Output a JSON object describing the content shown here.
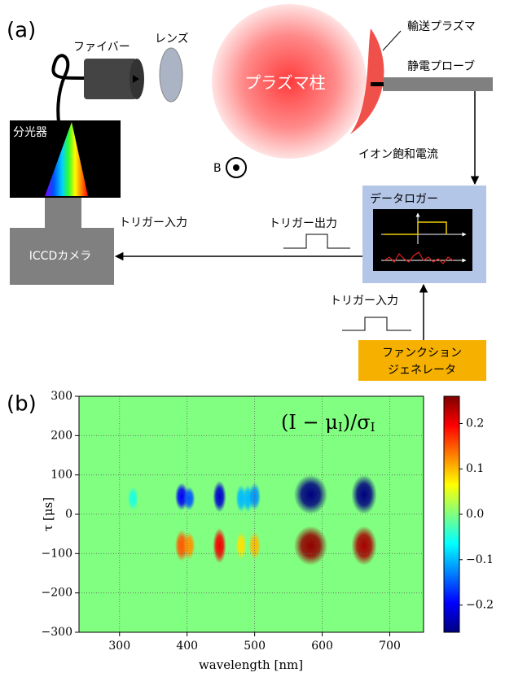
{
  "panel_a": {
    "label": "(a)",
    "fiber": "ファイバー",
    "lens": "レンズ",
    "spectrometer": "分光器",
    "camera": "ICCDカメラ",
    "plasma_column": "プラズマ柱",
    "transport_plasma": "輸送プラズマ",
    "probe": "静電プローブ",
    "b_field": "B",
    "ion_current": "イオン飽和電流",
    "logger": "データロガー",
    "trigger_in_camera": "トリガー入力",
    "trigger_out": "トリガー出力",
    "trigger_in_logger": "トリガー入力",
    "function_generator": [
      "ファンクション",
      "ジェネレータ"
    ]
  },
  "panel_b": {
    "label": "(b)",
    "chart_data": {
      "type": "heatmap",
      "annotation": [
        "(I − μ",
        "I",
        ")/σ",
        "I"
      ],
      "xlabel": "wavelength [nm]",
      "ylabel": "τ [μs]",
      "xlim": [
        240,
        750
      ],
      "xticks": [
        300,
        400,
        500,
        600,
        700
      ],
      "ylim": [
        -300,
        300
      ],
      "yticks": [
        {
          "value": -300,
          "label": "−300"
        },
        {
          "value": -200,
          "label": "−200"
        },
        {
          "value": -100,
          "label": "−100"
        },
        0,
        100,
        200,
        300
      ],
      "grid": true,
      "colormap": "jet",
      "clim": [
        -0.26,
        0.26
      ],
      "cticks": [
        {
          "value": -0.2,
          "label": "−0.2"
        },
        {
          "value": -0.1,
          "label": "−0.1"
        },
        {
          "value": 0,
          "label": "0.0"
        },
        0.1,
        0.2
      ],
      "features": {
        "wavelength": [
          320,
          392,
          403,
          448,
          480,
          490,
          500,
          583,
          662,
          392,
          403,
          448,
          480,
          500,
          583,
          662
        ],
        "tau": [
          40,
          45,
          40,
          45,
          40,
          40,
          45,
          50,
          50,
          -80,
          -80,
          -80,
          -80,
          -80,
          -80,
          -80
        ],
        "value": [
          -0.05,
          -0.2,
          -0.15,
          -0.22,
          -0.1,
          -0.1,
          -0.12,
          -0.26,
          -0.26,
          0.15,
          0.12,
          0.2,
          0.08,
          0.1,
          0.25,
          0.24
        ],
        "width": [
          6,
          10,
          8,
          10,
          6,
          6,
          8,
          40,
          28,
          10,
          8,
          10,
          6,
          8,
          40,
          28
        ],
        "height": [
          60,
          70,
          60,
          80,
          70,
          70,
          70,
          100,
          100,
          80,
          70,
          90,
          70,
          70,
          100,
          100
        ]
      }
    }
  }
}
